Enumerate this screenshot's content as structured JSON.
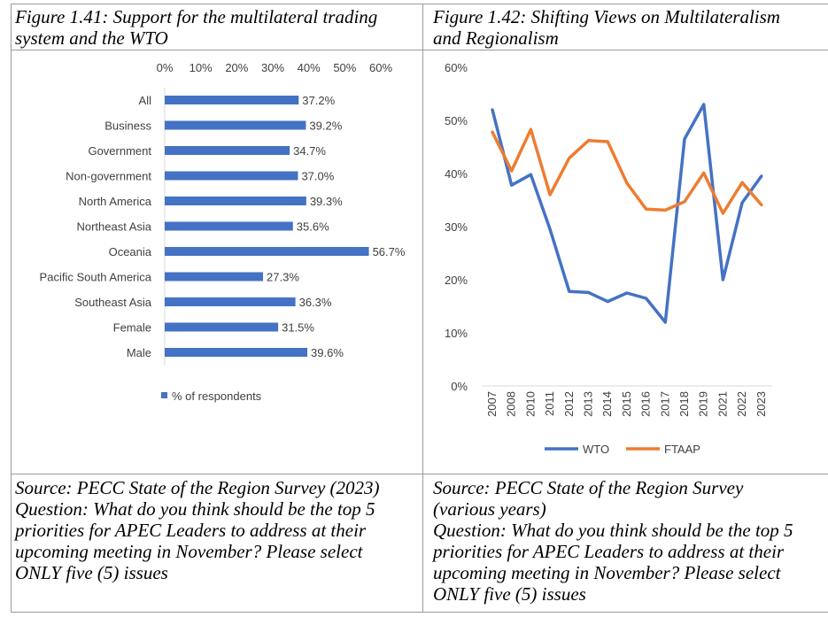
{
  "left_panel": {
    "caption_lines": [
      "Figure 1.41: Support for the multilateral trading",
      "system and the WTO"
    ],
    "source_lines": [
      "Source: PECC State of the Region Survey (2023)",
      "Question: What do you think should be the top 5",
      "priorities for APEC Leaders to address at their",
      "upcoming meeting in November?  Please select",
      "ONLY five (5) issues"
    ]
  },
  "right_panel": {
    "caption_lines": [
      "Figure 1.42: Shifting Views on Multilateralism",
      "and Regionalism"
    ],
    "source_lines": [
      "Source: PECC State of the Region Survey",
      "(various years)",
      "Question: What do you think should be the top 5",
      "priorities for APEC Leaders to address at their",
      "upcoming meeting in November?  Please select",
      "ONLY five (5) issues"
    ]
  },
  "chart_data": [
    {
      "type": "bar",
      "orientation": "horizontal",
      "categories": [
        "All",
        "Business",
        "Government",
        "Non-government",
        "North America",
        "Northeast Asia",
        "Oceania",
        "Pacific South America",
        "Southeast Asia",
        "Female",
        "Male"
      ],
      "series": [
        {
          "name": "% of respondents",
          "values": [
            37.2,
            39.2,
            34.7,
            37.0,
            39.3,
            35.6,
            56.7,
            27.3,
            36.3,
            31.5,
            39.6
          ],
          "color": "#4472c4"
        }
      ],
      "data_labels": [
        "37.2%",
        "39.2%",
        "34.7%",
        "37.0%",
        "39.3%",
        "35.6%",
        "56.7%",
        "27.3%",
        "36.3%",
        "31.5%",
        "39.6%"
      ],
      "xticks": [
        "0%",
        "10%",
        "20%",
        "30%",
        "40%",
        "50%",
        "60%"
      ],
      "xlim": [
        0,
        60
      ],
      "axis_position": "top",
      "legend": "bottom-left",
      "grid": false
    },
    {
      "type": "line",
      "x": [
        "2007",
        "2008",
        "2010",
        "2011",
        "2012",
        "2013",
        "2014",
        "2015",
        "2016",
        "2017",
        "2018",
        "2019",
        "2021",
        "2022",
        "2023"
      ],
      "series": [
        {
          "name": "WTO",
          "values": [
            52,
            37.8,
            39.8,
            29.5,
            17.8,
            17.6,
            15.9,
            17.5,
            16.5,
            12,
            46.5,
            53,
            20,
            34.5,
            39.5
          ],
          "color": "#4472c4"
        },
        {
          "name": "FTAAP",
          "values": [
            47.8,
            40.5,
            48.3,
            36,
            42.9,
            46.2,
            46,
            38.2,
            33.3,
            33.1,
            34.7,
            40.1,
            32.5,
            38.3,
            34.1
          ],
          "color": "#ed7d31"
        }
      ],
      "yticks": [
        "0%",
        "10%",
        "20%",
        "30%",
        "40%",
        "50%",
        "60%"
      ],
      "ylim": [
        0,
        60
      ],
      "legend": "bottom-center",
      "grid": false
    }
  ]
}
